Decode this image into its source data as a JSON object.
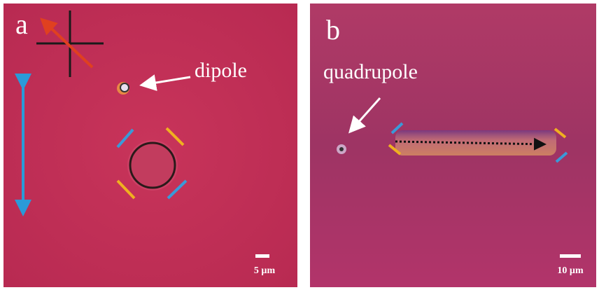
{
  "panels": [
    {
      "label": "a",
      "annotation": "dipole",
      "scale_bar": "5 µm"
    },
    {
      "label": "b",
      "annotation": "quadrupole",
      "scale_bar": "10 µm"
    }
  ]
}
